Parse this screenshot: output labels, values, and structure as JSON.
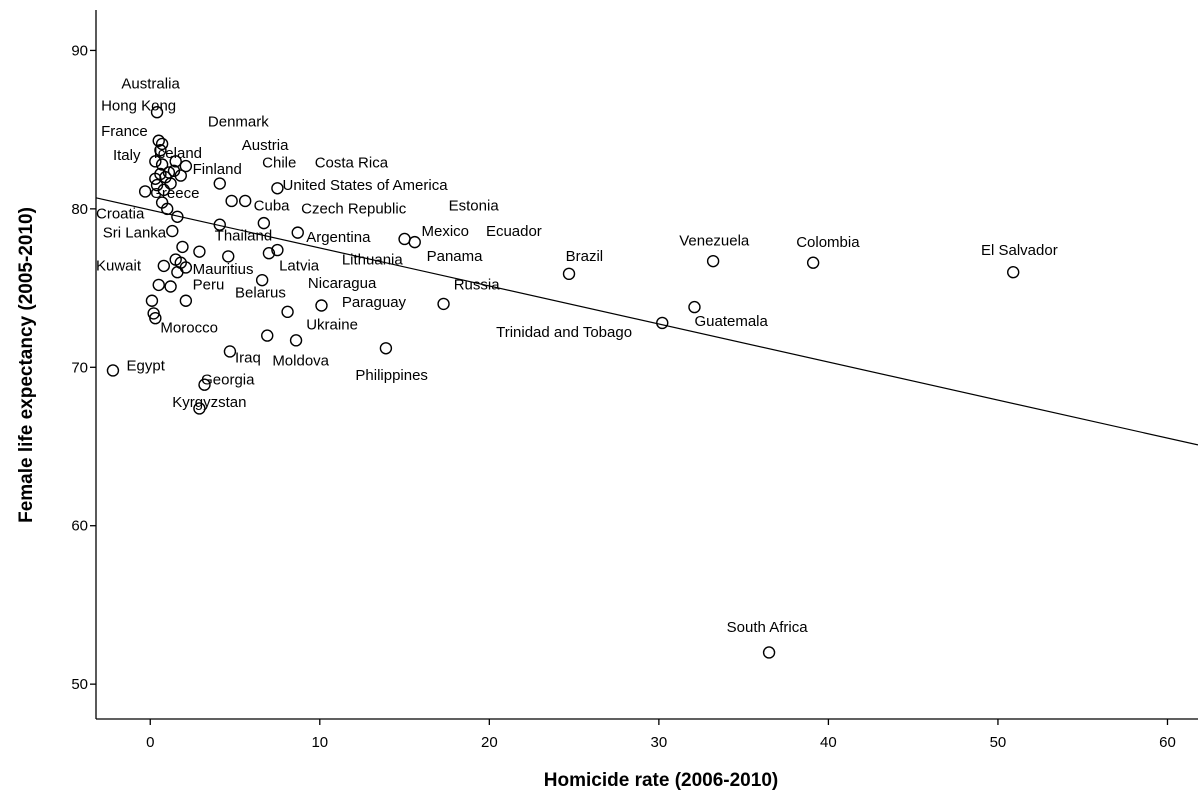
{
  "chart_data": {
    "type": "scatter",
    "xlabel": "Homicide rate (2006-2010)",
    "ylabel": "Female life expectancy (2005-2010)",
    "xlim": [
      -3.2,
      61.8
    ],
    "ylim": [
      47.8,
      92.3
    ],
    "xticks": [
      "0",
      "10",
      "20",
      "30",
      "40",
      "50",
      "60"
    ],
    "yticks": [
      "50",
      "60",
      "70",
      "80",
      "90"
    ],
    "grid": false,
    "fit_line": {
      "x": [
        -3.2,
        61.8
      ],
      "y": [
        80.7,
        65.1
      ]
    },
    "points": [
      {
        "x": 0.4,
        "y": 86.1,
        "label": "Australia"
      },
      {
        "x": 0.5,
        "y": 84.3,
        "label": "Hong Kong"
      },
      {
        "x": 0.7,
        "y": 84.1,
        "label": "Denmark"
      },
      {
        "x": 0.6,
        "y": 83.7,
        "label": "France"
      },
      {
        "x": 0.3,
        "y": 83.0,
        "label": "Italy"
      },
      {
        "x": 1.5,
        "y": 83.0,
        "label": "Iceland"
      },
      {
        "x": 0.7,
        "y": 82.8,
        "label": "Austria"
      },
      {
        "x": 2.1,
        "y": 82.7,
        "label": "Finland"
      },
      {
        "x": 1.1,
        "y": 82.3,
        "label": "Chile"
      },
      {
        "x": 1.8,
        "y": 82.1,
        "label": "Costa Rica"
      },
      {
        "x": 4.1,
        "y": 81.6,
        "label": "United States of America"
      },
      {
        "x": 0.3,
        "y": 81.9,
        "label": ""
      },
      {
        "x": 0.9,
        "y": 82.0,
        "label": ""
      },
      {
        "x": 1.4,
        "y": 82.4,
        "label": ""
      },
      {
        "x": 0.6,
        "y": 82.2,
        "label": ""
      },
      {
        "x": 1.2,
        "y": 81.6,
        "label": ""
      },
      {
        "x": 0.4,
        "y": 81.5,
        "label": ""
      },
      {
        "x": 0.8,
        "y": 81.2,
        "label": ""
      },
      {
        "x": -0.3,
        "y": 81.1,
        "label": "Greece"
      },
      {
        "x": 7.5,
        "y": 81.3,
        "label": "Cuba"
      },
      {
        "x": 4.8,
        "y": 80.5,
        "label": "Czech Republic"
      },
      {
        "x": 5.6,
        "y": 80.5,
        "label": "Estonia"
      },
      {
        "x": 0.7,
        "y": 80.4,
        "label": "Croatia"
      },
      {
        "x": 1.0,
        "y": 80.0,
        "label": ""
      },
      {
        "x": 1.6,
        "y": 79.5,
        "label": ""
      },
      {
        "x": 4.1,
        "y": 79.0,
        "label": "Sri Lanka"
      },
      {
        "x": 6.7,
        "y": 79.1,
        "label": "Thailand"
      },
      {
        "x": 1.3,
        "y": 78.6,
        "label": "Kuwait"
      },
      {
        "x": 8.7,
        "y": 78.5,
        "label": "Argentina"
      },
      {
        "x": 15.0,
        "y": 78.1,
        "label": "Mexico"
      },
      {
        "x": 15.6,
        "y": 77.9,
        "label": "Ecuador"
      },
      {
        "x": 1.9,
        "y": 77.6,
        "label": ""
      },
      {
        "x": 2.9,
        "y": 77.3,
        "label": "Mauritius"
      },
      {
        "x": 7.5,
        "y": 77.4,
        "label": "Latvia"
      },
      {
        "x": 7.0,
        "y": 77.2,
        "label": "Lithuania"
      },
      {
        "x": 4.6,
        "y": 77.0,
        "label": ""
      },
      {
        "x": 1.5,
        "y": 76.8,
        "label": ""
      },
      {
        "x": 1.8,
        "y": 76.6,
        "label": ""
      },
      {
        "x": 0.8,
        "y": 76.4,
        "label": ""
      },
      {
        "x": 1.6,
        "y": 76.0,
        "label": ""
      },
      {
        "x": 2.1,
        "y": 76.3,
        "label": "Peru"
      },
      {
        "x": 24.7,
        "y": 75.9,
        "label": "Panama"
      },
      {
        "x": 33.2,
        "y": 76.7,
        "label": "Venezuela"
      },
      {
        "x": 39.1,
        "y": 76.6,
        "label": "Colombia"
      },
      {
        "x": 50.9,
        "y": 76.0,
        "label": "El Salvador"
      },
      {
        "x": 6.6,
        "y": 75.5,
        "label": "Belarus"
      },
      {
        "x": 0.5,
        "y": 75.2,
        "label": ""
      },
      {
        "x": 1.2,
        "y": 75.1,
        "label": ""
      },
      {
        "x": 2.1,
        "y": 74.2,
        "label": "Nicaragua"
      },
      {
        "x": 0.1,
        "y": 74.2,
        "label": ""
      },
      {
        "x": 8.1,
        "y": 73.5,
        "label": "Paraguay"
      },
      {
        "x": 10.1,
        "y": 73.9,
        "label": "Brazil"
      },
      {
        "x": 17.3,
        "y": 74.0,
        "label": "Russia"
      },
      {
        "x": 32.1,
        "y": 73.8,
        "label": "Guatemala"
      },
      {
        "x": 30.2,
        "y": 72.8,
        "label": "Trinidad and Tobago"
      },
      {
        "x": 0.2,
        "y": 73.4,
        "label": ""
      },
      {
        "x": 0.3,
        "y": 73.1,
        "label": "Morocco"
      },
      {
        "x": 6.9,
        "y": 72.0,
        "label": "Ukraine"
      },
      {
        "x": 8.6,
        "y": 71.7,
        "label": "Moldova"
      },
      {
        "x": 13.9,
        "y": 71.2,
        "label": "Philippines"
      },
      {
        "x": 4.7,
        "y": 71.0,
        "label": "Iraq"
      },
      {
        "x": -2.2,
        "y": 69.8,
        "label": "Egypt"
      },
      {
        "x": 3.2,
        "y": 68.9,
        "label": "Georgia"
      },
      {
        "x": 2.9,
        "y": 67.4,
        "label": "Kyrgyzstan"
      },
      {
        "x": 36.5,
        "y": 52.0,
        "label": "South Africa"
      }
    ],
    "labels": [
      {
        "text": "Australia",
        "x": -1.7,
        "y": 87.6,
        "anchor": "start"
      },
      {
        "text": "Hong Kong",
        "x": -2.9,
        "y": 86.2,
        "anchor": "start"
      },
      {
        "text": "Denmark",
        "x": 3.4,
        "y": 85.2,
        "anchor": "start"
      },
      {
        "text": "France",
        "x": -2.9,
        "y": 84.6,
        "anchor": "start"
      },
      {
        "text": "Austria",
        "x": 5.4,
        "y": 83.7,
        "anchor": "start"
      },
      {
        "text": "Italy",
        "x": -2.2,
        "y": 83.1,
        "anchor": "start"
      },
      {
        "text": "Iceland",
        "x": 0.2,
        "y": 83.2,
        "anchor": "start"
      },
      {
        "text": "Chile",
        "x": 6.6,
        "y": 82.6,
        "anchor": "start"
      },
      {
        "text": "Costa Rica",
        "x": 9.7,
        "y": 82.6,
        "anchor": "start"
      },
      {
        "text": "Finland",
        "x": 2.5,
        "y": 82.2,
        "anchor": "start"
      },
      {
        "text": "United States of America",
        "x": 7.8,
        "y": 81.2,
        "anchor": "start"
      },
      {
        "text": "Greece",
        "x": 0.0,
        "y": 80.7,
        "anchor": "start"
      },
      {
        "text": "Cuba",
        "x": 6.1,
        "y": 79.9,
        "anchor": "start"
      },
      {
        "text": "Czech Republic",
        "x": 8.9,
        "y": 79.7,
        "anchor": "start"
      },
      {
        "text": "Estonia",
        "x": 17.6,
        "y": 79.9,
        "anchor": "start"
      },
      {
        "text": "Croatia",
        "x": -3.2,
        "y": 79.4,
        "anchor": "start"
      },
      {
        "text": "Sri Lanka",
        "x": -2.8,
        "y": 78.2,
        "anchor": "start"
      },
      {
        "text": "Thailand",
        "x": 3.8,
        "y": 78.0,
        "anchor": "start"
      },
      {
        "text": "Argentina",
        "x": 9.2,
        "y": 77.9,
        "anchor": "start"
      },
      {
        "text": "Mexico",
        "x": 16.0,
        "y": 78.3,
        "anchor": "start"
      },
      {
        "text": "Ecuador",
        "x": 19.8,
        "y": 78.3,
        "anchor": "start"
      },
      {
        "text": "Venezuela",
        "x": 31.2,
        "y": 77.7,
        "anchor": "start"
      },
      {
        "text": "Colombia",
        "x": 38.1,
        "y": 77.6,
        "anchor": "start"
      },
      {
        "text": "El Salvador",
        "x": 49.0,
        "y": 77.1,
        "anchor": "start"
      },
      {
        "text": "Panama",
        "x": 16.3,
        "y": 76.7,
        "anchor": "start"
      },
      {
        "text": "Brazil",
        "x": 24.5,
        "y": 76.7,
        "anchor": "start"
      },
      {
        "text": "Lithuania",
        "x": 11.3,
        "y": 76.5,
        "anchor": "start"
      },
      {
        "text": "Latvia",
        "x": 7.6,
        "y": 76.1,
        "anchor": "start"
      },
      {
        "text": "Kuwait",
        "x": -3.2,
        "y": 76.1,
        "anchor": "start"
      },
      {
        "text": "Mauritius",
        "x": 2.5,
        "y": 75.9,
        "anchor": "start"
      },
      {
        "text": "Peru",
        "x": 2.5,
        "y": 74.9,
        "anchor": "start"
      },
      {
        "text": "Nicaragua",
        "x": 9.3,
        "y": 75.0,
        "anchor": "start"
      },
      {
        "text": "Russia",
        "x": 17.9,
        "y": 74.9,
        "anchor": "start"
      },
      {
        "text": "Belarus",
        "x": 5.0,
        "y": 74.4,
        "anchor": "start"
      },
      {
        "text": "Paraguay",
        "x": 11.3,
        "y": 73.8,
        "anchor": "start"
      },
      {
        "text": "Guatemala",
        "x": 32.1,
        "y": 72.6,
        "anchor": "start"
      },
      {
        "text": "Ukraine",
        "x": 9.2,
        "y": 72.4,
        "anchor": "start"
      },
      {
        "text": "Morocco",
        "x": 0.6,
        "y": 72.2,
        "anchor": "start"
      },
      {
        "text": "Trinidad and Tobago",
        "x": 20.4,
        "y": 71.9,
        "anchor": "start"
      },
      {
        "text": "Iraq",
        "x": 5.0,
        "y": 70.3,
        "anchor": "start"
      },
      {
        "text": "Moldova",
        "x": 7.2,
        "y": 70.1,
        "anchor": "start"
      },
      {
        "text": "Egypt",
        "x": -1.4,
        "y": 69.8,
        "anchor": "start"
      },
      {
        "text": "Philippines",
        "x": 12.1,
        "y": 69.2,
        "anchor": "start"
      },
      {
        "text": "Georgia",
        "x": 3.0,
        "y": 68.9,
        "anchor": "start"
      },
      {
        "text": "Kyrgyzstan",
        "x": 1.3,
        "y": 67.5,
        "anchor": "start"
      },
      {
        "text": "South Africa",
        "x": 34.0,
        "y": 53.3,
        "anchor": "start"
      }
    ]
  }
}
